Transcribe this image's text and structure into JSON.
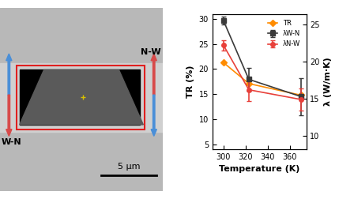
{
  "chart_data": {
    "type": "line",
    "x_label": "Temperature (K)",
    "y_label": "TR (%)",
    "y2_label": "λ (W/m·K)",
    "x": [
      300,
      323,
      370
    ],
    "xlim": [
      290,
      375
    ],
    "xticks": [
      300,
      320,
      340,
      360
    ],
    "ylim": [
      4,
      31
    ],
    "yticks": [
      5,
      10,
      15,
      20,
      25,
      30
    ],
    "y2lim": [
      8.2,
      26.4
    ],
    "y2ticks": [
      10,
      15,
      20,
      25
    ],
    "legend": "upper right",
    "series": [
      {
        "name": "TR",
        "color": "#ff8c00",
        "marker": "diamond",
        "values": [
          21.3,
          17.1,
          14.8
        ]
      },
      {
        "name": "λW-N",
        "color": "#3a3a3a",
        "marker": "square",
        "axis": "y2",
        "values": [
          25.5,
          17.6,
          15.3
        ],
        "errors": [
          0.5,
          1.5,
          2.5
        ]
      },
      {
        "name": "λN-W",
        "color": "#e8403a",
        "marker": "circle",
        "axis": "y2",
        "values": [
          22.2,
          16.2,
          14.9
        ],
        "errors": [
          0.7,
          1.5,
          1.5
        ]
      }
    ]
  },
  "micrograph": {
    "top_right_label": "N-W",
    "bottom_left_label": "W-N",
    "scale_bar": "5 μm"
  }
}
